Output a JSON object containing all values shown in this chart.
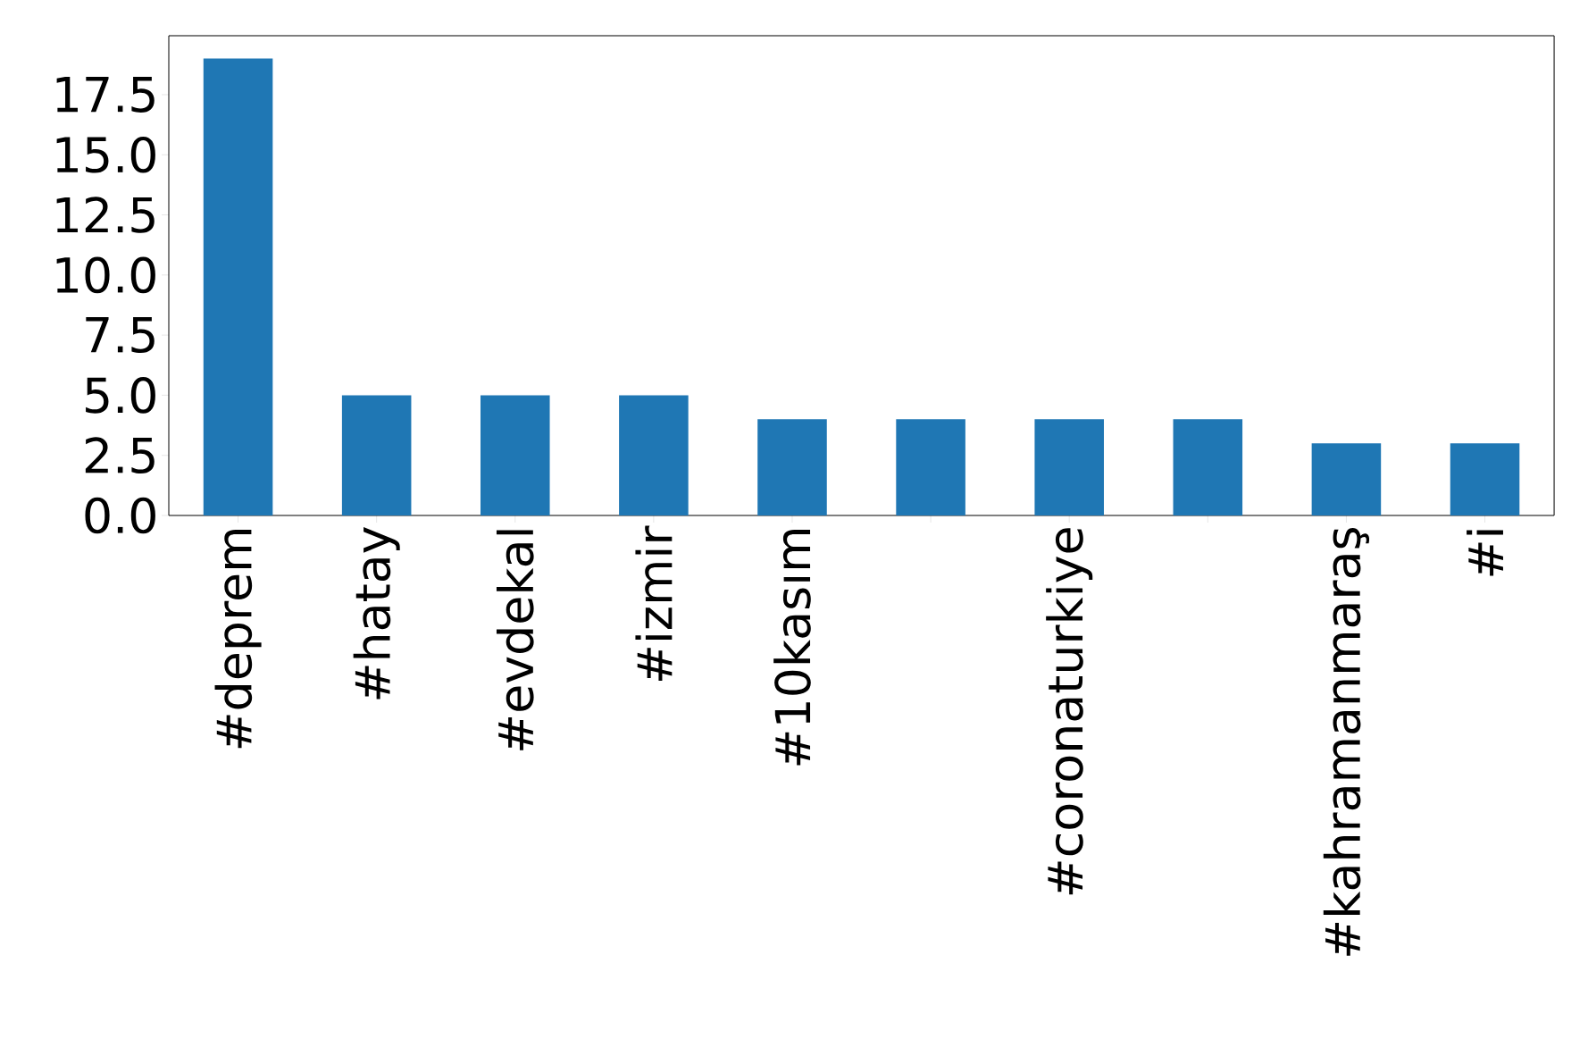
{
  "chart_data": {
    "type": "bar",
    "categories": [
      "#deprem",
      "#hatay",
      "#evdekal",
      "#izmir",
      "#10kasım",
      null,
      "#coronaturkiye",
      null,
      "#kahramanmaraş",
      "#i"
    ],
    "values": [
      19,
      5,
      5,
      5,
      4,
      4,
      4,
      4,
      3,
      3
    ],
    "color": "#1f77b4",
    "ylim": [
      0,
      19.95
    ],
    "yticks": [
      {
        "value": 0,
        "label": "0.0"
      },
      {
        "value": 2.5,
        "label": "2.5"
      },
      {
        "value": 5,
        "label": "5.0"
      },
      {
        "value": 7.5,
        "label": "7.5"
      },
      {
        "value": 10,
        "label": "10.0"
      },
      {
        "value": 12.5,
        "label": "12.5"
      },
      {
        "value": 15,
        "label": "15.0"
      },
      {
        "value": 17.5,
        "label": "17.5"
      }
    ]
  }
}
